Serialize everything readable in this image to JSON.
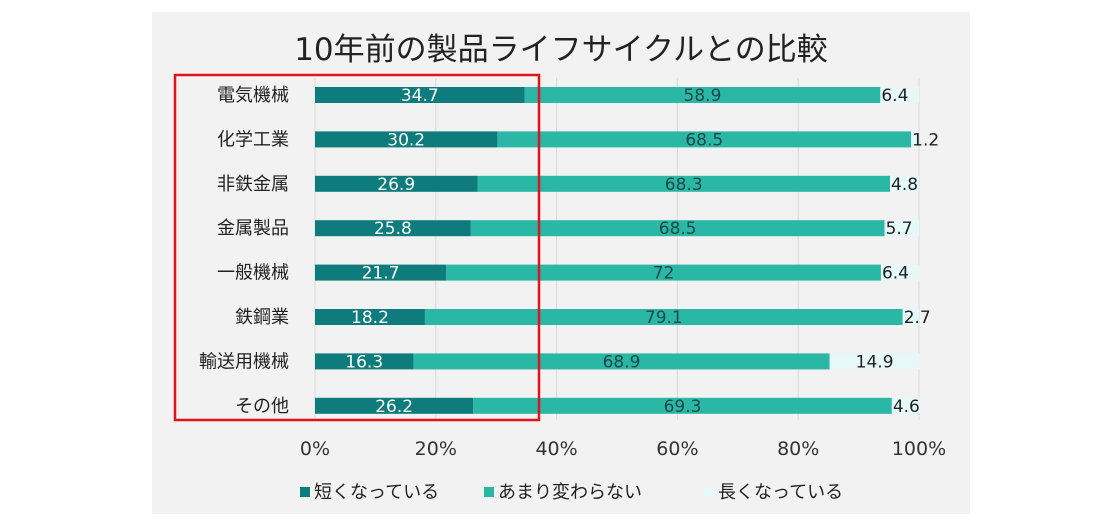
{
  "chart_data": {
    "type": "bar",
    "orientation": "horizontal",
    "stacked": true,
    "title": "10年前の製品ライフサイクルとの比較",
    "categories": [
      "電気機械",
      "化学工業",
      "非鉄金属",
      "金属製品",
      "一般機械",
      "鉄鋼業",
      "輸送用機械",
      "その他"
    ],
    "series": [
      {
        "name": "短くなっている",
        "color": "#0e7b7d",
        "values": [
          34.7,
          30.2,
          26.9,
          25.8,
          21.7,
          18.2,
          16.3,
          26.2
        ]
      },
      {
        "name": "あまり変わらない",
        "color": "#2bb7a6",
        "values": [
          58.9,
          68.5,
          68.3,
          68.5,
          72,
          79.1,
          68.9,
          69.3
        ]
      },
      {
        "name": "長くなっている",
        "color": "#e6f8f8",
        "values": [
          6.4,
          1.2,
          4.8,
          5.7,
          6.4,
          2.7,
          14.9,
          4.6
        ]
      }
    ],
    "value_labels": [
      [
        "34.7",
        "30.2",
        "26.9",
        "25.8",
        "21.7",
        "18.2",
        "16.3",
        "26.2"
      ],
      [
        "58.9",
        "68.5",
        "68.3",
        "68.5",
        "72",
        "79.1",
        "68.9",
        "69.3"
      ],
      [
        "6.4",
        "1.2",
        "4.8",
        "5.7",
        "6.4",
        "2.7",
        "14.9",
        "4.6"
      ]
    ],
    "xlim": [
      0,
      100
    ],
    "x_ticks": [
      "0%",
      "20%",
      "40%",
      "60%",
      "80%",
      "100%"
    ],
    "grid": true,
    "legend_position": "bottom",
    "highlight_color": "#e0141e"
  }
}
